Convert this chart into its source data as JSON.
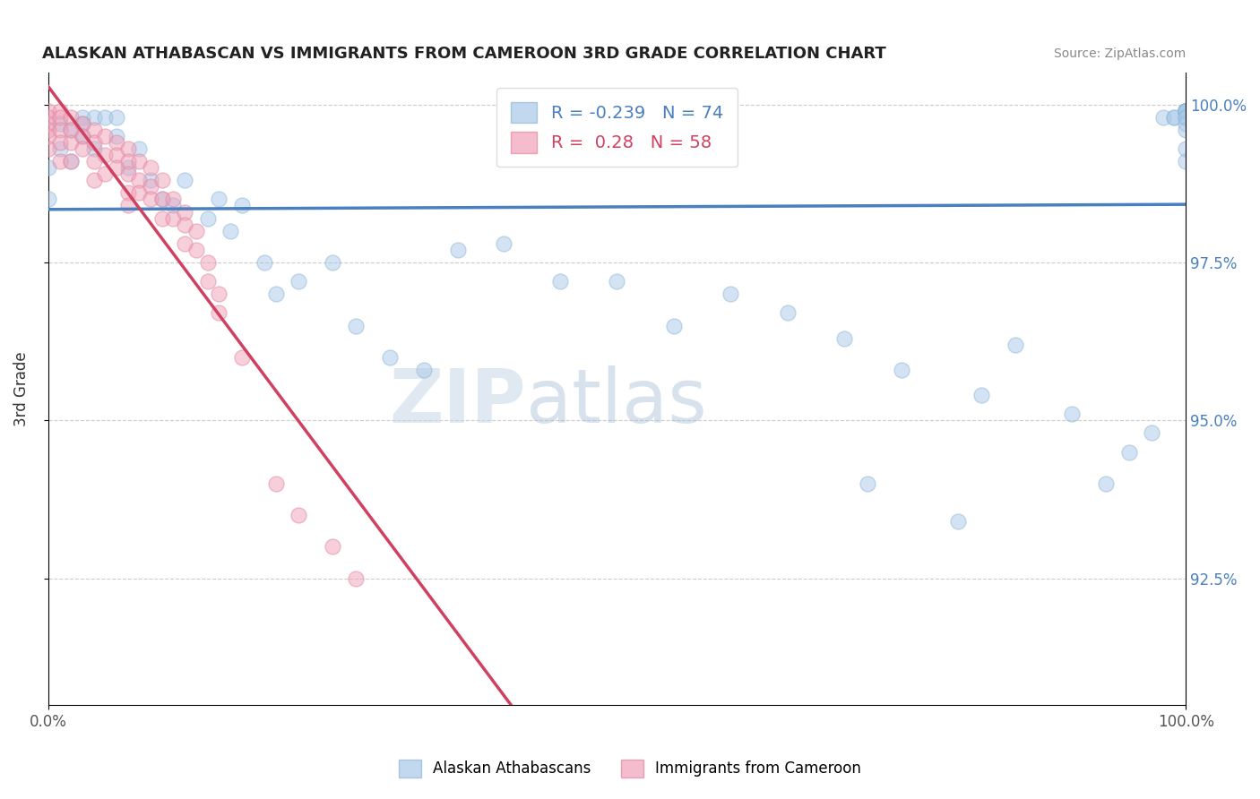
{
  "title": "ALASKAN ATHABASCAN VS IMMIGRANTS FROM CAMEROON 3RD GRADE CORRELATION CHART",
  "source": "Source: ZipAtlas.com",
  "ylabel": "3rd Grade",
  "xlim": [
    0.0,
    1.0
  ],
  "ylim": [
    0.905,
    1.005
  ],
  "yticks": [
    0.925,
    0.95,
    0.975,
    1.0
  ],
  "ytick_labels": [
    "92.5%",
    "95.0%",
    "97.5%",
    "100.0%"
  ],
  "xticks": [
    0.0,
    1.0
  ],
  "xtick_labels": [
    "0.0%",
    "100.0%"
  ],
  "blue_R": -0.239,
  "blue_N": 74,
  "pink_R": 0.28,
  "pink_N": 58,
  "blue_color": "#a8c8e8",
  "pink_color": "#f0a0b8",
  "blue_edge_color": "#90b8d8",
  "pink_edge_color": "#e088a0",
  "blue_line_color": "#4a7fc0",
  "pink_line_color": "#d04060",
  "legend_blue_label": "Alaskan Athabascans",
  "legend_pink_label": "Immigrants from Cameroon",
  "watermark_zip": "ZIP",
  "watermark_atlas": "atlas",
  "blue_x": [
    0.0,
    0.0,
    0.01,
    0.01,
    0.02,
    0.02,
    0.03,
    0.03,
    0.03,
    0.04,
    0.04,
    0.05,
    0.06,
    0.06,
    0.07,
    0.08,
    0.09,
    0.1,
    0.11,
    0.12,
    0.14,
    0.15,
    0.16,
    0.17,
    0.19,
    0.2,
    0.22,
    0.25,
    0.27,
    0.3,
    0.33,
    0.36,
    0.4,
    0.45,
    0.5,
    0.55,
    0.6,
    0.65,
    0.7,
    0.72,
    0.75,
    0.8,
    0.82,
    0.85,
    0.9,
    0.93,
    0.95,
    0.97,
    0.98,
    0.99,
    0.99,
    1.0,
    1.0,
    1.0,
    1.0,
    1.0,
    1.0,
    1.0,
    1.0,
    1.0,
    1.0,
    1.0,
    1.0,
    1.0,
    1.0,
    1.0,
    1.0,
    1.0,
    1.0,
    1.0,
    1.0,
    1.0,
    1.0,
    1.0
  ],
  "blue_y": [
    0.99,
    0.985,
    0.993,
    0.997,
    0.991,
    0.996,
    0.998,
    0.997,
    0.995,
    0.998,
    0.993,
    0.998,
    0.998,
    0.995,
    0.99,
    0.993,
    0.988,
    0.985,
    0.984,
    0.988,
    0.982,
    0.985,
    0.98,
    0.984,
    0.975,
    0.97,
    0.972,
    0.975,
    0.965,
    0.96,
    0.958,
    0.977,
    0.978,
    0.972,
    0.972,
    0.965,
    0.97,
    0.967,
    0.963,
    0.94,
    0.958,
    0.934,
    0.954,
    0.962,
    0.951,
    0.94,
    0.945,
    0.948,
    0.998,
    0.998,
    0.998,
    0.999,
    0.999,
    0.999,
    0.999,
    0.999,
    0.999,
    0.999,
    0.999,
    0.999,
    0.999,
    0.999,
    0.999,
    0.999,
    0.999,
    0.999,
    0.999,
    0.999,
    0.998,
    0.998,
    0.997,
    0.996,
    0.993,
    0.991
  ],
  "pink_x": [
    0.0,
    0.0,
    0.0,
    0.0,
    0.0,
    0.0,
    0.01,
    0.01,
    0.01,
    0.01,
    0.01,
    0.02,
    0.02,
    0.02,
    0.02,
    0.03,
    0.03,
    0.03,
    0.04,
    0.04,
    0.04,
    0.04,
    0.05,
    0.05,
    0.05,
    0.06,
    0.06,
    0.06,
    0.07,
    0.07,
    0.07,
    0.07,
    0.07,
    0.08,
    0.08,
    0.08,
    0.09,
    0.09,
    0.09,
    0.1,
    0.1,
    0.1,
    0.11,
    0.11,
    0.12,
    0.12,
    0.12,
    0.13,
    0.13,
    0.14,
    0.14,
    0.15,
    0.15,
    0.17,
    0.2,
    0.22,
    0.25,
    0.27
  ],
  "pink_y": [
    0.999,
    0.998,
    0.997,
    0.996,
    0.995,
    0.993,
    0.999,
    0.998,
    0.996,
    0.994,
    0.991,
    0.998,
    0.996,
    0.994,
    0.991,
    0.997,
    0.995,
    0.993,
    0.996,
    0.994,
    0.991,
    0.988,
    0.995,
    0.992,
    0.989,
    0.994,
    0.992,
    0.99,
    0.993,
    0.991,
    0.989,
    0.986,
    0.984,
    0.991,
    0.988,
    0.986,
    0.99,
    0.987,
    0.985,
    0.988,
    0.985,
    0.982,
    0.985,
    0.982,
    0.983,
    0.981,
    0.978,
    0.98,
    0.977,
    0.975,
    0.972,
    0.97,
    0.967,
    0.96,
    0.94,
    0.935,
    0.93,
    0.925
  ]
}
